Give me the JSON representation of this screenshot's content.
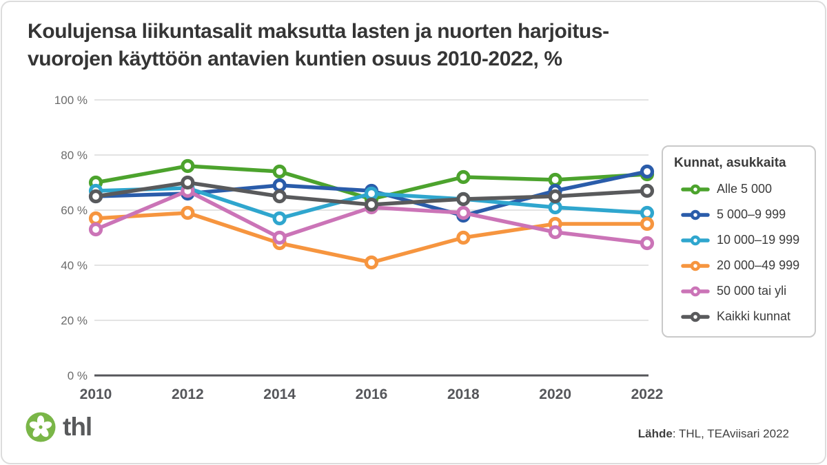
{
  "title": {
    "line1": "Koulujensa liikuntasalit maksutta lasten ja nuorten harjoitus-",
    "line2": "vuorojen käyttöön antavien kuntien osuus 2010-2022, %"
  },
  "legend": {
    "title": "Kunnat, asukkaita"
  },
  "chart_data": {
    "type": "line",
    "x": [
      "2010",
      "2012",
      "2014",
      "2016",
      "2018",
      "2020",
      "2022"
    ],
    "series": [
      {
        "name": "Alle 5 000",
        "color": "#4ca32d",
        "values": [
          70,
          76,
          74,
          64,
          72,
          71,
          73
        ]
      },
      {
        "name": "5 000–9 999",
        "color": "#2a5caa",
        "values": [
          65,
          66,
          69,
          67,
          58,
          67,
          74
        ]
      },
      {
        "name": "10 000–19 999",
        "color": "#2fa6ce",
        "values": [
          67,
          68,
          57,
          66,
          64,
          61,
          59
        ]
      },
      {
        "name": "20 000–49 999",
        "color": "#f6953f",
        "values": [
          57,
          59,
          48,
          41,
          50,
          55,
          55
        ]
      },
      {
        "name": "50 000 tai yli",
        "color": "#cb74b7",
        "values": [
          53,
          67,
          50,
          61,
          59,
          52,
          48
        ]
      },
      {
        "name": "Kaikki kunnat",
        "color": "#595a5c",
        "values": [
          65,
          70,
          65,
          62,
          64,
          65,
          67
        ]
      }
    ],
    "yticks": [
      {
        "value": 0,
        "label": "0 %"
      },
      {
        "value": 20,
        "label": "20 %"
      },
      {
        "value": 40,
        "label": "40 %"
      },
      {
        "value": 60,
        "label": "60 %"
      },
      {
        "value": 80,
        "label": "80 %"
      },
      {
        "value": 100,
        "label": "100 %"
      }
    ],
    "ylim": [
      0,
      100
    ],
    "grid": true,
    "legend_position": "right",
    "legend_title": "Kunnat, asukkaita"
  },
  "footer": {
    "logo_text": "thl",
    "source_label": "Lähde",
    "source_rest": ": THL, TEAviisari 2022"
  }
}
